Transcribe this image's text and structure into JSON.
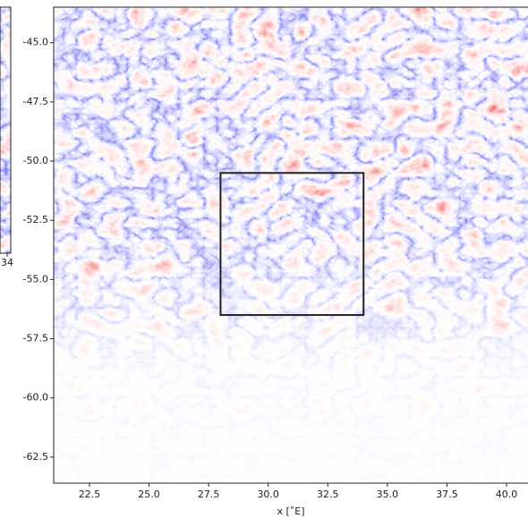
{
  "chart_data": [
    {
      "type": "image",
      "xticks": [
        34
      ]
    },
    {
      "type": "image",
      "xlabel": "x [˚E]",
      "xlim": [
        21.0,
        40.9
      ],
      "ylim": [
        -63.6,
        -43.5
      ],
      "xticks": [
        22.5,
        25.0,
        27.5,
        30.0,
        32.5,
        35.0,
        37.5,
        40.0
      ],
      "yticks": [
        -45.0,
        -47.5,
        -50.0,
        -52.5,
        -55.0,
        -57.5,
        -60.0,
        -62.5
      ],
      "box": {
        "x": [
          28,
          34
        ],
        "y": [
          -56.5,
          -50.5
        ],
        "color": "#222222"
      }
    }
  ]
}
